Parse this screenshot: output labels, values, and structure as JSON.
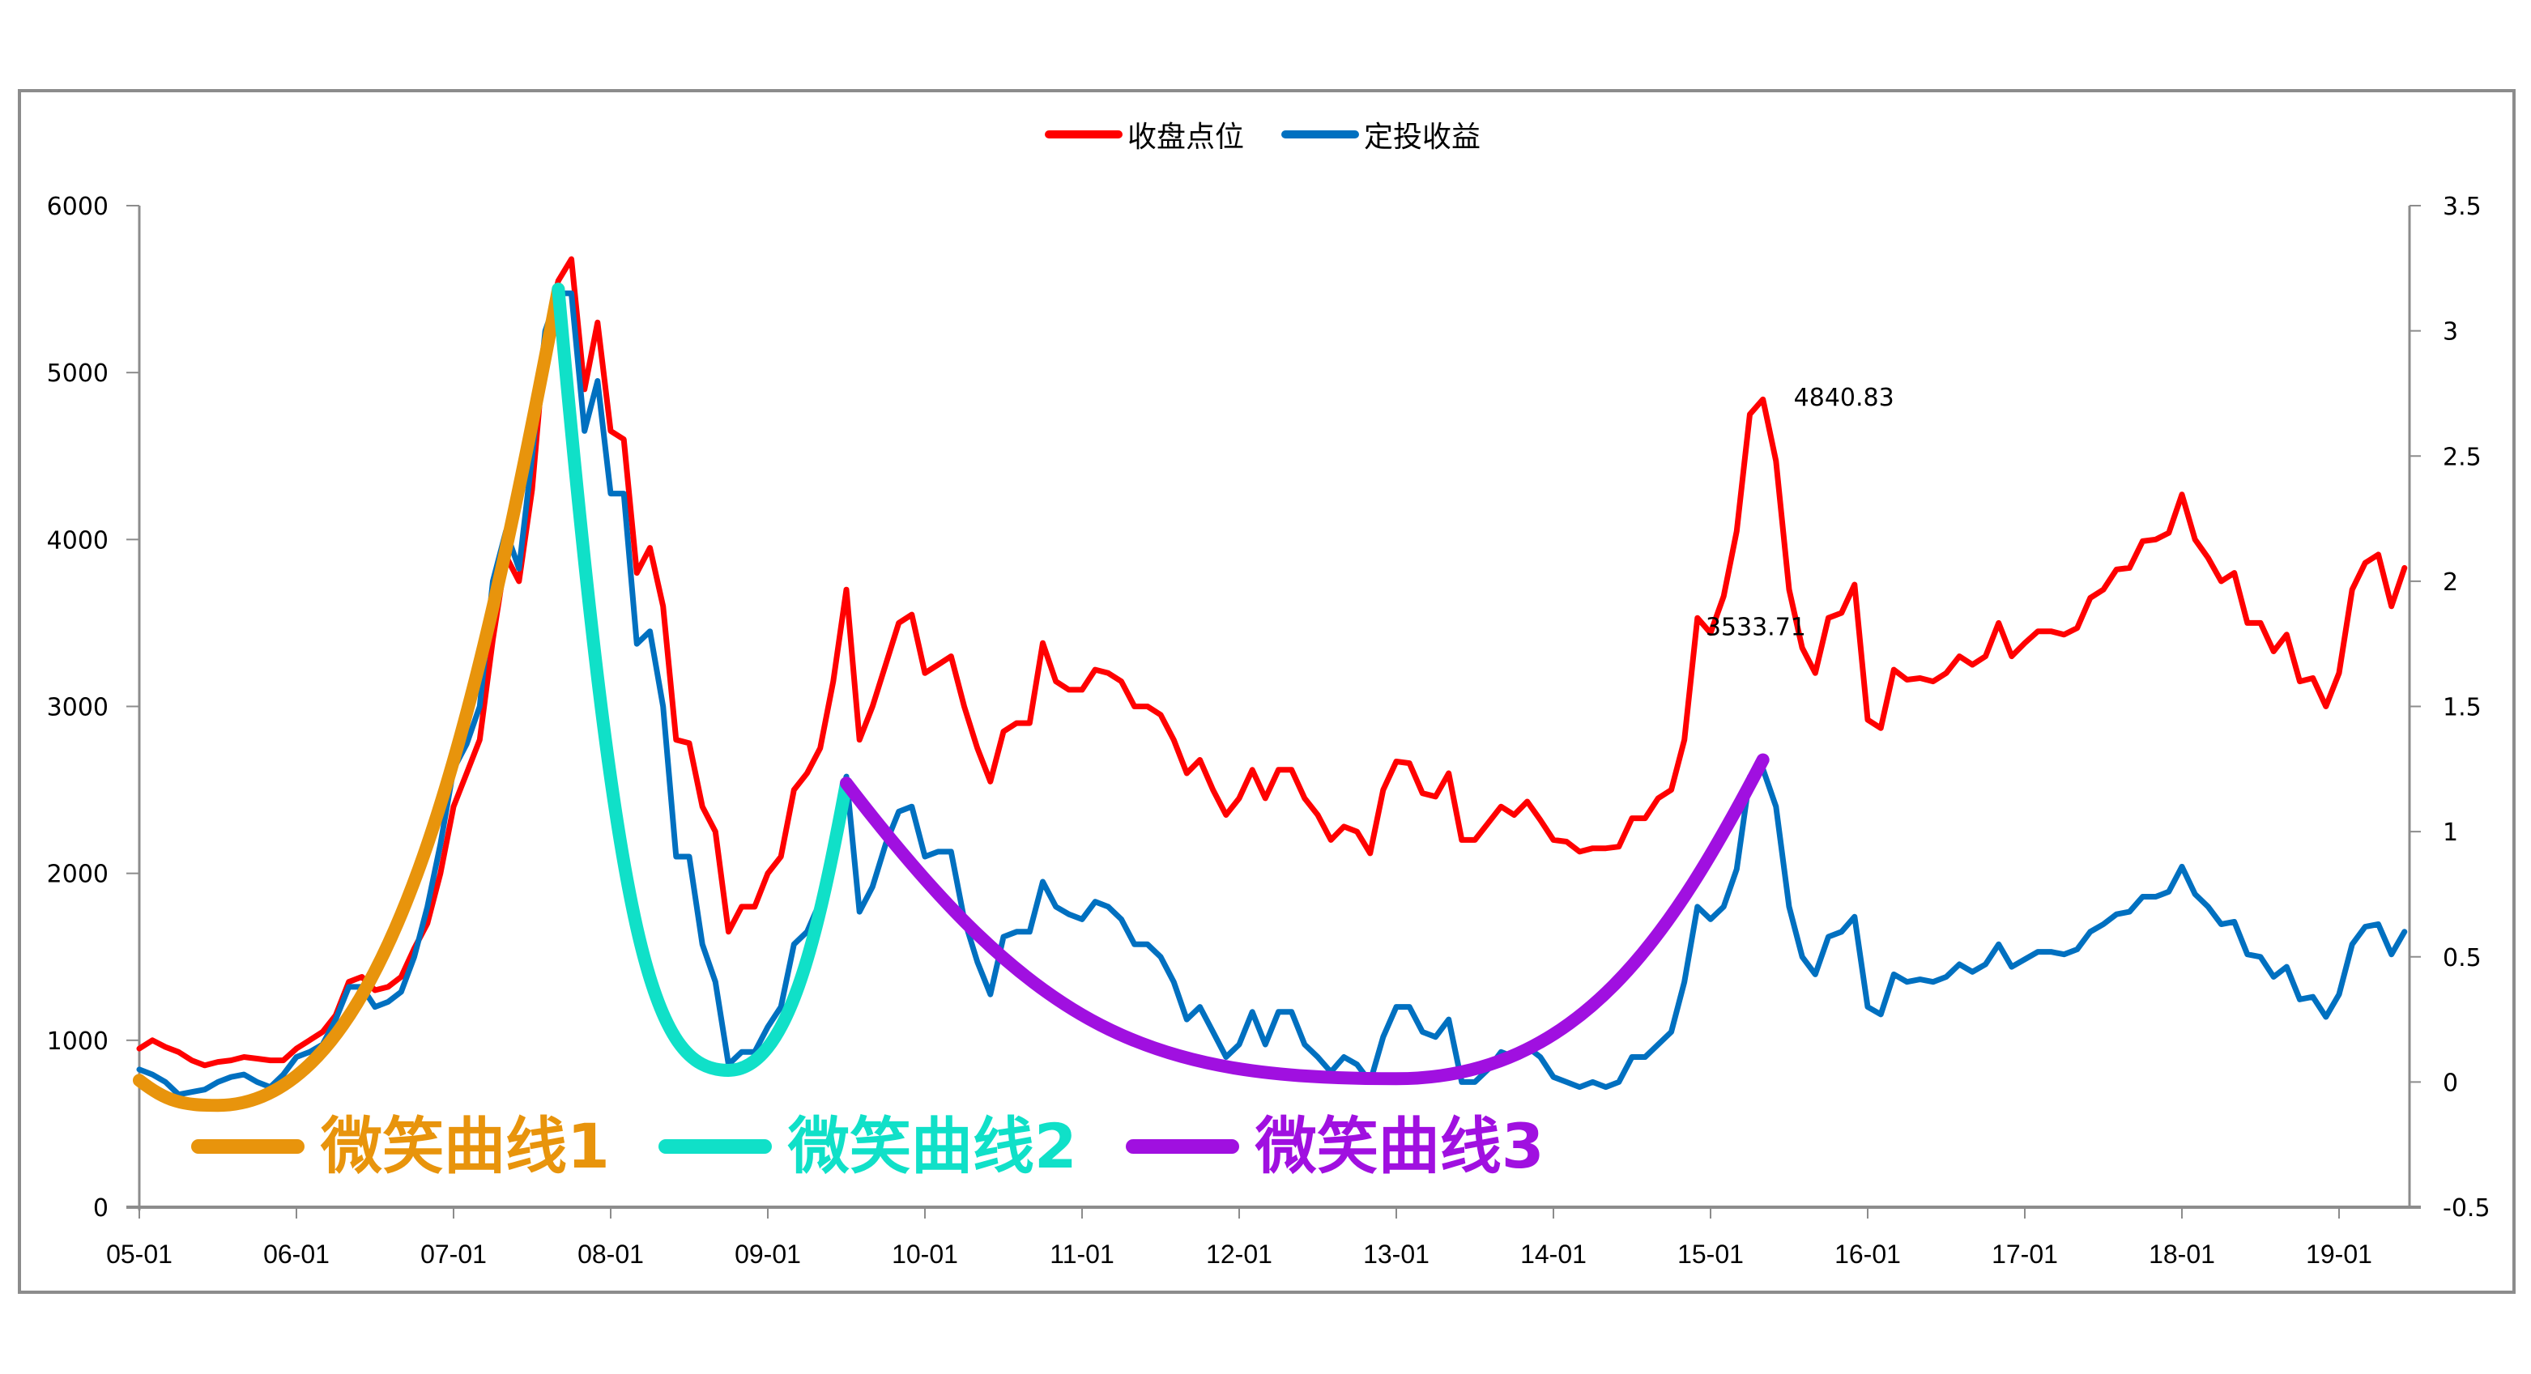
{
  "chart_data": {
    "type": "line",
    "title": "",
    "legend": [
      {
        "name": "收盘点位",
        "color": "#FF0000",
        "axis": "left"
      },
      {
        "name": "定投收益",
        "color": "#0070C0",
        "axis": "right"
      }
    ],
    "legend_position": "top",
    "grid": false,
    "x_tick_labels": [
      "05-01",
      "06-01",
      "07-01",
      "08-01",
      "09-01",
      "10-01",
      "11-01",
      "12-01",
      "13-01",
      "14-01",
      "15-01",
      "16-01",
      "17-01",
      "18-01",
      "19-01"
    ],
    "x_start": "2005-01",
    "x_step": "month",
    "left_axis": {
      "label": "",
      "ticks": [
        0,
        1000,
        2000,
        3000,
        4000,
        5000,
        6000
      ],
      "ylim": [
        0,
        6000
      ]
    },
    "right_axis": {
      "label": "",
      "ticks": [
        "-0.5",
        "0",
        "0.5",
        "1",
        "1.5",
        "2",
        "2.5",
        "3",
        "3.5"
      ],
      "ylim": [
        -0.5,
        3.5
      ]
    },
    "series": [
      {
        "name": "收盘点位",
        "axis": "left",
        "color": "#FF0000",
        "values": [
          950,
          1000,
          960,
          930,
          880,
          850,
          870,
          880,
          900,
          890,
          880,
          880,
          950,
          1000,
          1050,
          1150,
          1350,
          1380,
          1300,
          1320,
          1380,
          1550,
          1700,
          2000,
          2400,
          2600,
          2800,
          3400,
          3900,
          3750,
          4300,
          5200,
          5550,
          5680,
          4900,
          5300,
          4650,
          4600,
          3800,
          3950,
          3600,
          2800,
          2780,
          2400,
          2250,
          1650,
          1800,
          1800,
          2000,
          2100,
          2500,
          2600,
          2750,
          3150,
          3700,
          2800,
          3000,
          3250,
          3500,
          3550,
          3200,
          3250,
          3300,
          3000,
          2750,
          2550,
          2850,
          2900,
          2900,
          3380,
          3150,
          3100,
          3100,
          3220,
          3200,
          3150,
          3000,
          3000,
          2950,
          2800,
          2600,
          2680,
          2500,
          2350,
          2450,
          2620,
          2450,
          2620,
          2620,
          2450,
          2350,
          2200,
          2280,
          2250,
          2120,
          2500,
          2670,
          2660,
          2480,
          2460,
          2600,
          2200,
          2200,
          2300,
          2400,
          2350,
          2430,
          2320,
          2200,
          2190,
          2130,
          2150,
          2150,
          2160,
          2330,
          2330,
          2450,
          2500,
          2800,
          3530,
          3440,
          3660,
          4050,
          4750,
          4840,
          4470,
          3700,
          3350,
          3200,
          3530,
          3560,
          3730,
          2920,
          2870,
          3220,
          3160,
          3170,
          3150,
          3200,
          3300,
          3250,
          3300,
          3500,
          3300,
          3380,
          3450,
          3450,
          3430,
          3470,
          3650,
          3700,
          3820,
          3830,
          3990,
          4000,
          4040,
          4270,
          4000,
          3890,
          3750,
          3800,
          3500,
          3500,
          3330,
          3430,
          3150,
          3170,
          3000,
          3200,
          3700,
          3860,
          3910,
          3600,
          3830
        ]
      },
      {
        "name": "定投收益",
        "axis": "right",
        "color": "#0070C0",
        "values": [
          0.05,
          0.03,
          0.0,
          -0.05,
          -0.04,
          -0.03,
          0.0,
          0.02,
          0.03,
          0.0,
          -0.02,
          0.03,
          0.1,
          0.12,
          0.15,
          0.25,
          0.38,
          0.38,
          0.3,
          0.32,
          0.36,
          0.5,
          0.7,
          0.95,
          1.25,
          1.35,
          1.5,
          2.0,
          2.2,
          2.05,
          2.5,
          3.0,
          3.15,
          3.15,
          2.6,
          2.8,
          2.35,
          2.35,
          1.75,
          1.8,
          1.5,
          0.9,
          0.9,
          0.55,
          0.4,
          0.07,
          0.12,
          0.12,
          0.22,
          0.3,
          0.55,
          0.6,
          0.72,
          0.95,
          1.22,
          0.68,
          0.78,
          0.95,
          1.08,
          1.1,
          0.9,
          0.92,
          0.92,
          0.65,
          0.48,
          0.35,
          0.58,
          0.6,
          0.6,
          0.8,
          0.7,
          0.67,
          0.65,
          0.72,
          0.7,
          0.65,
          0.55,
          0.55,
          0.5,
          0.4,
          0.25,
          0.3,
          0.2,
          0.1,
          0.15,
          0.28,
          0.15,
          0.28,
          0.28,
          0.15,
          0.1,
          0.04,
          0.1,
          0.07,
          0.0,
          0.18,
          0.3,
          0.3,
          0.2,
          0.18,
          0.25,
          0.0,
          0.0,
          0.05,
          0.12,
          0.1,
          0.14,
          0.1,
          0.02,
          0.0,
          -0.02,
          0.0,
          -0.02,
          0.0,
          0.1,
          0.1,
          0.15,
          0.2,
          0.4,
          0.7,
          0.65,
          0.7,
          0.85,
          1.22,
          1.25,
          1.1,
          0.7,
          0.5,
          0.43,
          0.58,
          0.6,
          0.66,
          0.3,
          0.27,
          0.43,
          0.4,
          0.41,
          0.4,
          0.42,
          0.47,
          0.44,
          0.47,
          0.55,
          0.46,
          0.49,
          0.52,
          0.52,
          0.51,
          0.53,
          0.6,
          0.63,
          0.67,
          0.68,
          0.74,
          0.74,
          0.76,
          0.86,
          0.75,
          0.7,
          0.63,
          0.64,
          0.51,
          0.5,
          0.42,
          0.46,
          0.33,
          0.34,
          0.26,
          0.35,
          0.55,
          0.62,
          0.63,
          0.51,
          0.6
        ]
      }
    ],
    "annotations": [
      {
        "text": "4840.83",
        "x": "2015-05",
        "y": 4840.83,
        "series": "收盘点位"
      },
      {
        "text": "3533.71",
        "x": "2014-12",
        "y": 3533.71,
        "series": "收盘点位"
      }
    ],
    "overlay_curves": [
      {
        "name": "微笑曲线1",
        "color": "#E8940C",
        "from": "2005-01",
        "to": "2007-09",
        "points_left_axis": [
          [
            "2005-01",
            760
          ],
          [
            "2005-07",
            610
          ],
          [
            "2007-09",
            5500
          ]
        ]
      },
      {
        "name": "微笑曲线2",
        "color": "#10E0C8",
        "from": "2007-09",
        "to": "2009-07",
        "points_left_axis": [
          [
            "2007-09",
            5500
          ],
          [
            "2008-10",
            820
          ],
          [
            "2009-07",
            2540
          ]
        ]
      },
      {
        "name": "微笑曲线3",
        "color": "#A010E0",
        "from": "2009-07",
        "to": "2015-05",
        "points_left_axis": [
          [
            "2009-07",
            2540
          ],
          [
            "2013-01",
            770
          ],
          [
            "2015-05",
            2680
          ]
        ]
      }
    ]
  },
  "legend": {
    "items": [
      {
        "label": "收盘点位",
        "color": "#FF0000"
      },
      {
        "label": "定投收益",
        "color": "#0070C0"
      }
    ]
  },
  "smile_legend": {
    "items": [
      {
        "label": "微笑曲线1",
        "color": "#E8940C"
      },
      {
        "label": "微笑曲线2",
        "color": "#10E0C8"
      },
      {
        "label": "微笑曲线3",
        "color": "#A010E0"
      }
    ]
  }
}
